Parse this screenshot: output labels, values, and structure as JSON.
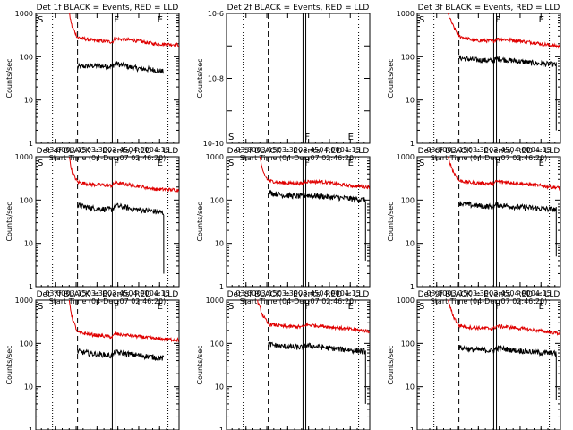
{
  "figure": {
    "colors": {
      "events": "#000000",
      "lld": "#e00000",
      "axis": "#000000",
      "background": "#ffffff"
    },
    "common_ylabel": "Counts/sec",
    "common_xlabel": "Start Time (04-Dec-07 02:46:20)",
    "x_tick_labels": [
      "03:00",
      "03:15",
      "03:30",
      "03:45",
      "04:00",
      "04:15"
    ],
    "y_tick_labels_log": [
      "1",
      "10",
      "100",
      "1000"
    ],
    "y_tick_labels_small": [
      "10^-10",
      "10^-8",
      "10^-6"
    ],
    "markers": {
      "start": "S",
      "flare": "F",
      "end": "E"
    }
  },
  "chart_data": [
    {
      "type": "line",
      "title": "Det 1f BLACK = Events, RED = LLD",
      "x_unit": "minutes after 02:46:20",
      "xlim": [
        0,
        103
      ],
      "yscale": "log",
      "ylim": [
        1,
        1000
      ],
      "marker_times": {
        "dotted": [
          12,
          95
        ],
        "dashed": [
          30
        ],
        "solid": [
          55,
          57
        ]
      },
      "series": [
        {
          "name": "Events",
          "color": "#000000",
          "end": 92,
          "points": [
            [
              30,
              58
            ],
            [
              40,
              62
            ],
            [
              55,
              60
            ],
            [
              57,
              70
            ],
            [
              70,
              55
            ],
            [
              85,
              50
            ],
            [
              92,
              45
            ]
          ]
        },
        {
          "name": "LLD",
          "color": "#e00000",
          "end": 103,
          "points": [
            [
              24,
              1000
            ],
            [
              26,
              500
            ],
            [
              30,
              280
            ],
            [
              40,
              240
            ],
            [
              55,
              220
            ],
            [
              57,
              260
            ],
            [
              70,
              240
            ],
            [
              85,
              200
            ],
            [
              103,
              190
            ]
          ]
        }
      ]
    },
    {
      "type": "line",
      "title": "Det 2f BLACK = Events, RED = LLD",
      "x_unit": "minutes after 02:46:20",
      "xlim": [
        0,
        103
      ],
      "yscale": "log",
      "ylim": [
        1e-10,
        1e-06
      ],
      "marker_times": {
        "dotted": [
          12,
          95
        ],
        "dashed": [
          30
        ],
        "solid": [
          55,
          57
        ]
      },
      "series": []
    },
    {
      "type": "line",
      "title": "Det 3f BLACK = Events, RED = LLD",
      "x_unit": "minutes after 02:46:20",
      "xlim": [
        0,
        103
      ],
      "yscale": "log",
      "ylim": [
        1,
        1000
      ],
      "marker_times": {
        "dotted": [
          12,
          95
        ],
        "dashed": [
          30
        ],
        "solid": [
          55,
          57
        ]
      },
      "series": [
        {
          "name": "Events",
          "color": "#000000",
          "end": 100,
          "drop_to": 2,
          "points": [
            [
              30,
              95
            ],
            [
              40,
              85
            ],
            [
              55,
              80
            ],
            [
              57,
              90
            ],
            [
              70,
              80
            ],
            [
              85,
              70
            ],
            [
              100,
              65
            ]
          ]
        },
        {
          "name": "LLD",
          "color": "#e00000",
          "end": 103,
          "points": [
            [
              22,
              1000
            ],
            [
              26,
              500
            ],
            [
              30,
              300
            ],
            [
              40,
              240
            ],
            [
              55,
              230
            ],
            [
              57,
              260
            ],
            [
              70,
              240
            ],
            [
              85,
              210
            ],
            [
              103,
              170
            ]
          ]
        }
      ]
    },
    {
      "type": "line",
      "title": "Det 4f BLACK = Events, RED = LLD",
      "x_unit": "minutes after 02:46:20",
      "xlim": [
        0,
        103
      ],
      "yscale": "log",
      "ylim": [
        1,
        1000
      ],
      "marker_times": {
        "dotted": [
          12,
          95
        ],
        "dashed": [
          30
        ],
        "solid": [
          55,
          57
        ]
      },
      "series": [
        {
          "name": "Events",
          "color": "#000000",
          "end": 92,
          "drop_to": 2,
          "points": [
            [
              30,
              75
            ],
            [
              40,
              65
            ],
            [
              55,
              60
            ],
            [
              57,
              75
            ],
            [
              70,
              62
            ],
            [
              85,
              55
            ],
            [
              92,
              50
            ]
          ]
        },
        {
          "name": "LLD",
          "color": "#e00000",
          "end": 103,
          "points": [
            [
              24,
              1000
            ],
            [
              26,
              450
            ],
            [
              30,
              260
            ],
            [
              40,
              230
            ],
            [
              55,
              215
            ],
            [
              57,
              250
            ],
            [
              70,
              220
            ],
            [
              85,
              180
            ],
            [
              103,
              170
            ]
          ]
        }
      ]
    },
    {
      "type": "line",
      "title": "Det 5f BLACK = Events, RED = LLD",
      "x_unit": "minutes after 02:46:20",
      "xlim": [
        0,
        103
      ],
      "yscale": "log",
      "ylim": [
        1,
        1000
      ],
      "marker_times": {
        "dotted": [
          12,
          95
        ],
        "dashed": [
          30
        ],
        "solid": [
          55,
          57
        ]
      },
      "series": [
        {
          "name": "Events",
          "color": "#000000",
          "end": 100,
          "drop_to": 4,
          "points": [
            [
              30,
              150
            ],
            [
              40,
              130
            ],
            [
              55,
              120
            ],
            [
              57,
              130
            ],
            [
              70,
              120
            ],
            [
              85,
              110
            ],
            [
              100,
              100
            ]
          ]
        },
        {
          "name": "LLD",
          "color": "#e00000",
          "end": 103,
          "points": [
            [
              24,
              1000
            ],
            [
              26,
              450
            ],
            [
              30,
              280
            ],
            [
              40,
              250
            ],
            [
              55,
              240
            ],
            [
              57,
              270
            ],
            [
              70,
              260
            ],
            [
              85,
              220
            ],
            [
              103,
              200
            ]
          ]
        }
      ]
    },
    {
      "type": "line",
      "title": "Det 6f BLACK = Events, RED = LLD",
      "x_unit": "minutes after 02:46:20",
      "xlim": [
        0,
        103
      ],
      "yscale": "log",
      "ylim": [
        1,
        1000
      ],
      "marker_times": {
        "dotted": [
          12,
          95
        ],
        "dashed": [
          30
        ],
        "solid": [
          55,
          57
        ]
      },
      "series": [
        {
          "name": "Events",
          "color": "#000000",
          "end": 100,
          "drop_to": 5,
          "points": [
            [
              30,
              85
            ],
            [
              40,
              75
            ],
            [
              55,
              70
            ],
            [
              57,
              78
            ],
            [
              70,
              70
            ],
            [
              85,
              65
            ],
            [
              100,
              60
            ]
          ]
        },
        {
          "name": "LLD",
          "color": "#e00000",
          "end": 103,
          "points": [
            [
              22,
              1000
            ],
            [
              26,
              450
            ],
            [
              30,
              280
            ],
            [
              40,
              250
            ],
            [
              55,
              240
            ],
            [
              57,
              270
            ],
            [
              70,
              250
            ],
            [
              85,
              220
            ],
            [
              103,
              190
            ]
          ]
        }
      ]
    },
    {
      "type": "line",
      "title": "Det 7f BLACK = Events, RED = LLD",
      "x_unit": "minutes after 02:46:20",
      "xlim": [
        0,
        103
      ],
      "yscale": "log",
      "ylim": [
        1,
        1000
      ],
      "marker_times": {
        "dotted": [
          12,
          95
        ],
        "dashed": [
          30
        ],
        "solid": [
          55,
          57
        ]
      },
      "series": [
        {
          "name": "Events",
          "color": "#000000",
          "end": 92,
          "points": [
            [
              30,
              65
            ],
            [
              40,
              58
            ],
            [
              55,
              52
            ],
            [
              57,
              62
            ],
            [
              70,
              55
            ],
            [
              85,
              48
            ],
            [
              92,
              45
            ]
          ]
        },
        {
          "name": "LLD",
          "color": "#e00000",
          "end": 103,
          "points": [
            [
              24,
              1000
            ],
            [
              26,
              400
            ],
            [
              30,
              180
            ],
            [
              40,
              160
            ],
            [
              55,
              140
            ],
            [
              57,
              165
            ],
            [
              70,
              150
            ],
            [
              85,
              130
            ],
            [
              103,
              120
            ]
          ]
        }
      ]
    },
    {
      "type": "line",
      "title": "Det 8f BLACK = Events, RED = LLD",
      "x_unit": "minutes after 02:46:20",
      "xlim": [
        0,
        103
      ],
      "yscale": "log",
      "ylim": [
        1,
        1000
      ],
      "marker_times": {
        "dotted": [
          12,
          95
        ],
        "dashed": [
          30
        ],
        "solid": [
          55,
          57
        ]
      },
      "series": [
        {
          "name": "Events",
          "color": "#000000",
          "end": 100,
          "drop_to": 4,
          "points": [
            [
              30,
              95
            ],
            [
              40,
              85
            ],
            [
              55,
              80
            ],
            [
              57,
              90
            ],
            [
              70,
              80
            ],
            [
              85,
              72
            ],
            [
              100,
              65
            ]
          ]
        },
        {
          "name": "LLD",
          "color": "#e00000",
          "end": 103,
          "points": [
            [
              22,
              1000
            ],
            [
              26,
              450
            ],
            [
              30,
              280
            ],
            [
              40,
              250
            ],
            [
              55,
              240
            ],
            [
              57,
              270
            ],
            [
              70,
              250
            ],
            [
              85,
              220
            ],
            [
              103,
              190
            ]
          ]
        }
      ]
    },
    {
      "type": "line",
      "title": "Det 9f BLACK = Events, RED = LLD",
      "x_unit": "minutes after 02:46:20",
      "xlim": [
        0,
        103
      ],
      "yscale": "log",
      "ylim": [
        1,
        1000
      ],
      "marker_times": {
        "dotted": [
          12,
          95
        ],
        "dashed": [
          30
        ],
        "solid": [
          55,
          57
        ]
      },
      "series": [
        {
          "name": "Events",
          "color": "#000000",
          "end": 100,
          "drop_to": 5,
          "points": [
            [
              30,
              80
            ],
            [
              40,
              72
            ],
            [
              55,
              68
            ],
            [
              57,
              78
            ],
            [
              70,
              70
            ],
            [
              85,
              62
            ],
            [
              100,
              58
            ]
          ]
        },
        {
          "name": "LLD",
          "color": "#e00000",
          "end": 103,
          "points": [
            [
              22,
              1000
            ],
            [
              26,
              420
            ],
            [
              30,
              260
            ],
            [
              40,
              230
            ],
            [
              55,
              220
            ],
            [
              57,
              250
            ],
            [
              70,
              230
            ],
            [
              85,
              200
            ],
            [
              103,
              170
            ]
          ]
        }
      ]
    }
  ]
}
